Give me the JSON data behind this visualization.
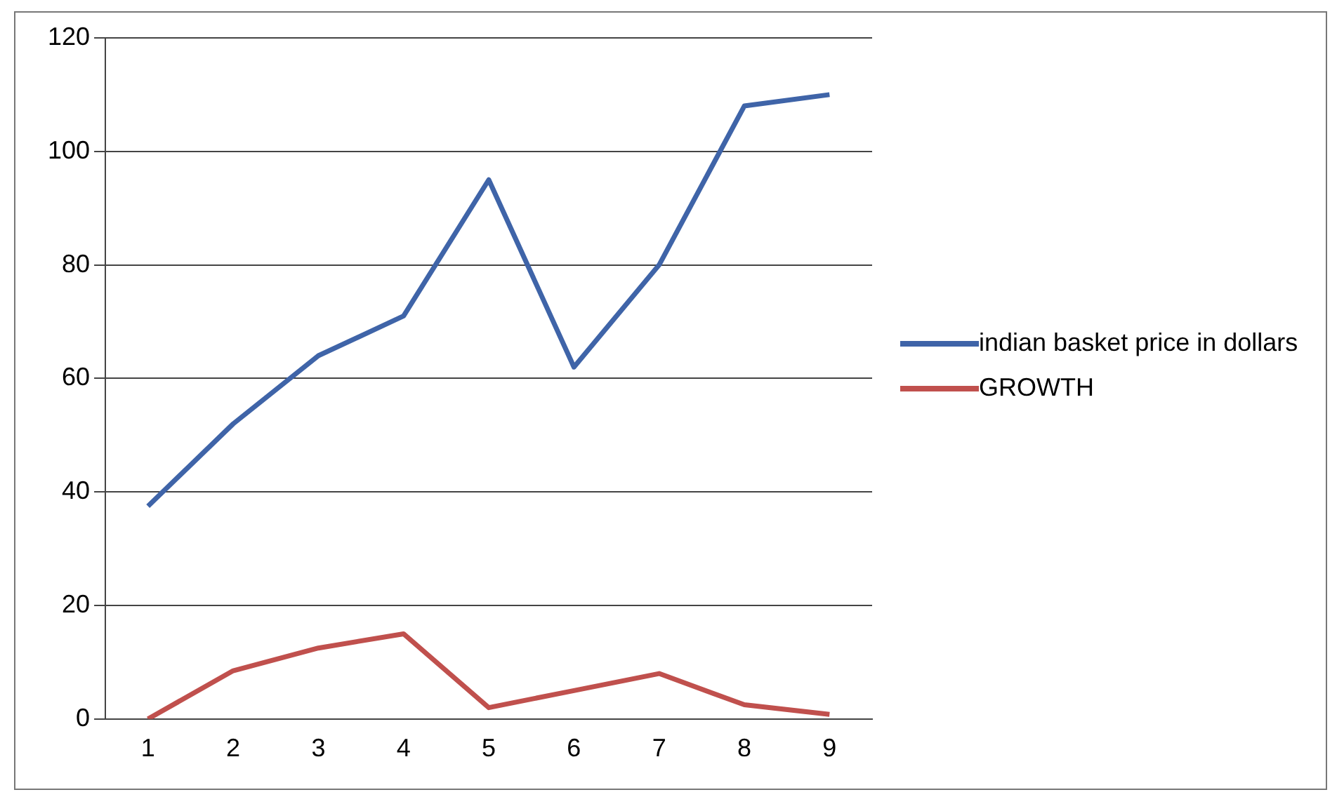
{
  "chart_data": {
    "type": "line",
    "categories": [
      "1",
      "2",
      "3",
      "4",
      "5",
      "6",
      "7",
      "8",
      "9"
    ],
    "series": [
      {
        "name": "indian basket price in dollars",
        "color": "#3f64a8",
        "values": [
          37.5,
          52,
          64,
          71,
          95,
          62,
          80,
          108,
          110
        ]
      },
      {
        "name": "GROWTH",
        "color": "#c0504d",
        "values": [
          0,
          8.5,
          12.5,
          15,
          2,
          5,
          8,
          2.5,
          0.8
        ]
      }
    ],
    "ylim": [
      0,
      120
    ],
    "yticks": [
      0,
      20,
      40,
      60,
      80,
      100,
      120
    ],
    "grid": "y",
    "legend": "right",
    "marker": "none",
    "line_style": "solid"
  }
}
